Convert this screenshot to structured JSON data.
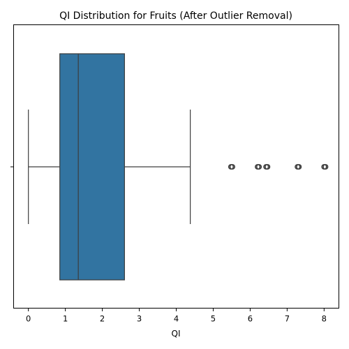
{
  "chart_data": {
    "type": "boxplot",
    "title": "QI Distribution for Fruits (After Outlier Removal)",
    "xlabel": "QI",
    "ylabel": "",
    "xlim": [
      -0.4,
      8.4
    ],
    "xticks": [
      0,
      1,
      2,
      3,
      4,
      5,
      6,
      7,
      8
    ],
    "grid": false,
    "box": {
      "whisker_low": 0.0,
      "q1": 0.85,
      "median": 1.35,
      "q3": 2.6,
      "whisker_high": 4.38,
      "outliers": [
        5.5,
        6.22,
        6.45,
        7.3,
        8.02
      ],
      "color": "#3274a1",
      "edge_color": "#3d3d3d"
    }
  }
}
